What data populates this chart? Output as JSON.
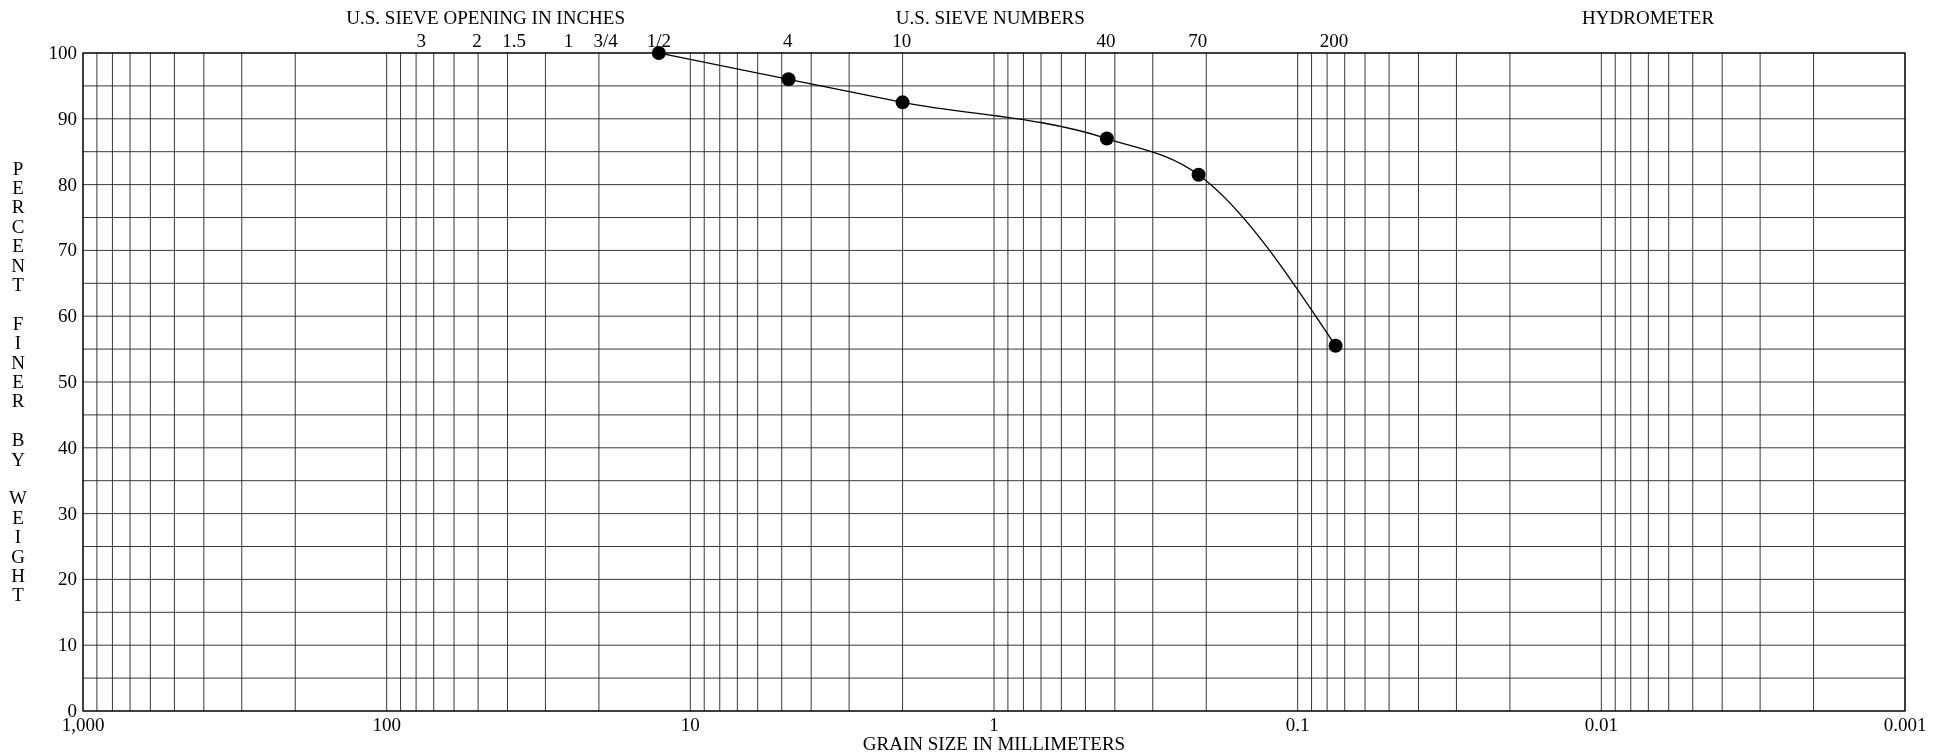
{
  "chart_data": {
    "type": "line",
    "xlabel": "GRAIN SIZE IN MILLIMETERS",
    "ylabel": "PERCENT FINER BY WEIGHT",
    "annotations": [
      "U.S. SIEVE OPENING IN INCHES",
      "U.S. SIEVE NUMBERS",
      "HYDROMETER",
      "3",
      "2",
      "1.5",
      "1",
      "3/4",
      "1/2",
      "4",
      "10",
      "40",
      "70",
      "200"
    ],
    "log": "x",
    "xlim": [
      1000,
      0.001
    ],
    "ylim": [
      0,
      100
    ],
    "xticks": [
      {
        "value": 1000,
        "label": "1,000"
      },
      {
        "value": 900,
        "label": null
      },
      {
        "value": 800,
        "label": null
      },
      {
        "value": 700,
        "label": null
      },
      {
        "value": 600,
        "label": null
      },
      {
        "value": 500,
        "label": null
      },
      {
        "value": 400,
        "label": null
      },
      {
        "value": 300,
        "label": null
      },
      {
        "value": 200,
        "label": null
      },
      {
        "value": 100,
        "label": "100"
      },
      {
        "value": 90,
        "label": null
      },
      {
        "value": 80,
        "label": null
      },
      {
        "value": 70,
        "label": null
      },
      {
        "value": 60,
        "label": null
      },
      {
        "value": 50,
        "label": null
      },
      {
        "value": 40,
        "label": null
      },
      {
        "value": 30,
        "label": null
      },
      {
        "value": 20,
        "label": null
      },
      {
        "value": 10,
        "label": "10"
      },
      {
        "value": 9,
        "label": null
      },
      {
        "value": 8,
        "label": null
      },
      {
        "value": 7,
        "label": null
      },
      {
        "value": 6,
        "label": null
      },
      {
        "value": 5,
        "label": null
      },
      {
        "value": 4,
        "label": null
      },
      {
        "value": 3,
        "label": null
      },
      {
        "value": 2,
        "label": null
      },
      {
        "value": 1,
        "label": "1"
      },
      {
        "value": 0.9,
        "label": null
      },
      {
        "value": 0.8,
        "label": null
      },
      {
        "value": 0.7,
        "label": null
      },
      {
        "value": 0.6,
        "label": null
      },
      {
        "value": 0.5,
        "label": null
      },
      {
        "value": 0.4,
        "label": null
      },
      {
        "value": 0.3,
        "label": null
      },
      {
        "value": 0.2,
        "label": null
      },
      {
        "value": 0.1,
        "label": "0.1"
      },
      {
        "value": 0.09,
        "label": null
      },
      {
        "value": 0.08,
        "label": null
      },
      {
        "value": 0.07,
        "label": null
      },
      {
        "value": 0.06,
        "label": null
      },
      {
        "value": 0.05,
        "label": null
      },
      {
        "value": 0.04,
        "label": null
      },
      {
        "value": 0.03,
        "label": null
      },
      {
        "value": 0.02,
        "label": null
      },
      {
        "value": 0.01,
        "label": "0.01"
      },
      {
        "value": 0.009,
        "label": null
      },
      {
        "value": 0.008,
        "label": null
      },
      {
        "value": 0.007,
        "label": null
      },
      {
        "value": 0.006,
        "label": null
      },
      {
        "value": 0.005,
        "label": null
      },
      {
        "value": 0.004,
        "label": null
      },
      {
        "value": 0.003,
        "label": null
      },
      {
        "value": 0.002,
        "label": null
      },
      {
        "value": 0.001,
        "label": "0.001"
      }
    ],
    "yticks": [
      0,
      {
        "value": 5,
        "label": null
      },
      10,
      {
        "value": 15,
        "label": null
      },
      20,
      {
        "value": 25,
        "label": null
      },
      30,
      {
        "value": 35,
        "label": null
      },
      40,
      {
        "value": 45,
        "label": null
      },
      50,
      {
        "value": 55,
        "label": null
      },
      60,
      {
        "value": 65,
        "label": null
      },
      70,
      {
        "value": 75,
        "label": null
      },
      80,
      {
        "value": 85,
        "label": null
      },
      90,
      {
        "value": 95,
        "label": null
      },
      100
    ],
    "grid": true,
    "marker": "circle",
    "line_style": "solid",
    "series": [
      {
        "color": "#000000",
        "x": [
          12.7,
          4.75,
          2.0,
          0.425,
          0.212,
          0.075
        ],
        "values": [
          100,
          96,
          92.5,
          87,
          81.5,
          55.5
        ]
      }
    ]
  }
}
